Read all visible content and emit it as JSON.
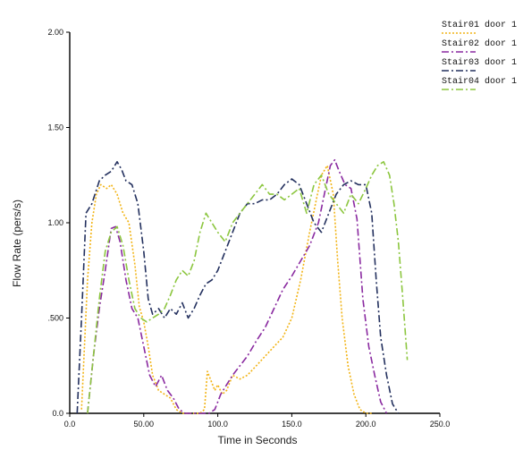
{
  "chart_data": {
    "type": "line",
    "title": "",
    "xlabel": "Time in Seconds",
    "ylabel": "Flow Rate (pers/s)",
    "xlim": [
      0,
      250
    ],
    "ylim": [
      0,
      2
    ],
    "x_ticks": [
      0,
      50,
      100,
      150,
      200,
      250
    ],
    "x_tick_labels": [
      "0.0",
      "50.00",
      "100.0",
      "150.0",
      "200.0",
      "250.0"
    ],
    "y_ticks": [
      0,
      0.5,
      1,
      1.5,
      2
    ],
    "y_tick_labels": [
      "0.0",
      ".500",
      "1.00",
      "1.50",
      "2.00"
    ],
    "grid": false,
    "legend_position": "top-right",
    "series": [
      {
        "name": "Stair01 door 1",
        "color": "#f2b416",
        "dash": "dotted",
        "x": [
          8,
          12,
          15,
          18,
          21,
          25,
          28,
          32,
          36,
          40,
          44,
          47,
          50,
          53,
          56,
          60,
          64,
          68,
          72,
          76,
          80,
          84,
          88,
          91,
          93,
          95,
          98,
          100,
          103,
          106,
          110,
          115,
          120,
          126,
          132,
          138,
          144,
          150,
          156,
          162,
          166,
          170,
          174,
          178,
          181,
          184,
          188,
          192,
          196,
          200,
          204
        ],
        "y": [
          0.02,
          0.7,
          1.0,
          1.15,
          1.2,
          1.18,
          1.2,
          1.15,
          1.05,
          1.0,
          0.78,
          0.56,
          0.48,
          0.35,
          0.2,
          0.12,
          0.1,
          0.08,
          0.02,
          0.0,
          0.0,
          0.0,
          0.0,
          0.02,
          0.22,
          0.18,
          0.12,
          0.15,
          0.1,
          0.12,
          0.2,
          0.18,
          0.2,
          0.25,
          0.3,
          0.35,
          0.4,
          0.5,
          0.7,
          0.95,
          1.1,
          1.25,
          1.3,
          1.15,
          0.8,
          0.5,
          0.25,
          0.1,
          0.02,
          0.0,
          0.0
        ]
      },
      {
        "name": "Stair02 door 1",
        "color": "#8a2aa0",
        "dash": "dashdot",
        "x": [
          12,
          16,
          20,
          24,
          28,
          31,
          34,
          38,
          42,
          46,
          50,
          54,
          58,
          62,
          66,
          70,
          74,
          78,
          82,
          86,
          90,
          94,
          98,
          102,
          106,
          110,
          115,
          120,
          126,
          132,
          138,
          144,
          150,
          156,
          162,
          168,
          172,
          176,
          179,
          182,
          186,
          190,
          194,
          198,
          202,
          206,
          210,
          214
        ],
        "y": [
          0.0,
          0.3,
          0.55,
          0.75,
          0.97,
          0.98,
          0.9,
          0.7,
          0.55,
          0.5,
          0.35,
          0.2,
          0.14,
          0.2,
          0.12,
          0.08,
          0.02,
          0.0,
          0.0,
          0.0,
          0.0,
          0.0,
          0.02,
          0.1,
          0.15,
          0.2,
          0.25,
          0.3,
          0.38,
          0.45,
          0.55,
          0.65,
          0.72,
          0.8,
          0.88,
          1.0,
          1.15,
          1.3,
          1.33,
          1.27,
          1.2,
          1.18,
          1.02,
          0.6,
          0.35,
          0.2,
          0.06,
          0.0
        ]
      },
      {
        "name": "Stair03 door 1",
        "color": "#23305e",
        "dash": "dashdot",
        "x": [
          5,
          8,
          11,
          15,
          20,
          24,
          28,
          32,
          35,
          38,
          42,
          46,
          50,
          53,
          56,
          60,
          64,
          68,
          72,
          76,
          80,
          84,
          88,
          92,
          96,
          100,
          105,
          110,
          115,
          120,
          125,
          130,
          135,
          140,
          145,
          150,
          155,
          160,
          165,
          170,
          175,
          180,
          185,
          190,
          195,
          200,
          204,
          207,
          210,
          214,
          218,
          222
        ],
        "y": [
          0.0,
          0.5,
          1.05,
          1.1,
          1.22,
          1.25,
          1.27,
          1.32,
          1.28,
          1.22,
          1.2,
          1.1,
          0.85,
          0.6,
          0.52,
          0.55,
          0.5,
          0.55,
          0.52,
          0.58,
          0.5,
          0.55,
          0.62,
          0.68,
          0.7,
          0.75,
          0.85,
          0.95,
          1.05,
          1.1,
          1.1,
          1.12,
          1.12,
          1.15,
          1.2,
          1.23,
          1.2,
          1.1,
          1.0,
          0.95,
          1.05,
          1.15,
          1.2,
          1.22,
          1.2,
          1.2,
          1.05,
          0.7,
          0.4,
          0.2,
          0.05,
          0.0
        ]
      },
      {
        "name": "Stair04 door 1",
        "color": "#8cc63f",
        "dash": "dashdot",
        "x": [
          12,
          16,
          20,
          24,
          28,
          32,
          36,
          40,
          44,
          48,
          52,
          56,
          60,
          64,
          68,
          72,
          76,
          80,
          84,
          88,
          92,
          96,
          100,
          105,
          110,
          115,
          120,
          125,
          130,
          135,
          140,
          145,
          150,
          155,
          160,
          165,
          170,
          175,
          180,
          185,
          190,
          195,
          200,
          204,
          208,
          212,
          216,
          219,
          222,
          225,
          228
        ],
        "y": [
          0.0,
          0.3,
          0.6,
          0.85,
          0.95,
          0.98,
          0.88,
          0.7,
          0.55,
          0.5,
          0.48,
          0.5,
          0.52,
          0.55,
          0.62,
          0.7,
          0.75,
          0.72,
          0.8,
          0.95,
          1.05,
          1.0,
          0.95,
          0.9,
          1.0,
          1.05,
          1.1,
          1.15,
          1.2,
          1.15,
          1.15,
          1.12,
          1.15,
          1.18,
          1.05,
          1.2,
          1.25,
          1.15,
          1.1,
          1.05,
          1.15,
          1.1,
          1.18,
          1.25,
          1.3,
          1.32,
          1.25,
          1.1,
          0.9,
          0.6,
          0.28
        ]
      }
    ]
  }
}
